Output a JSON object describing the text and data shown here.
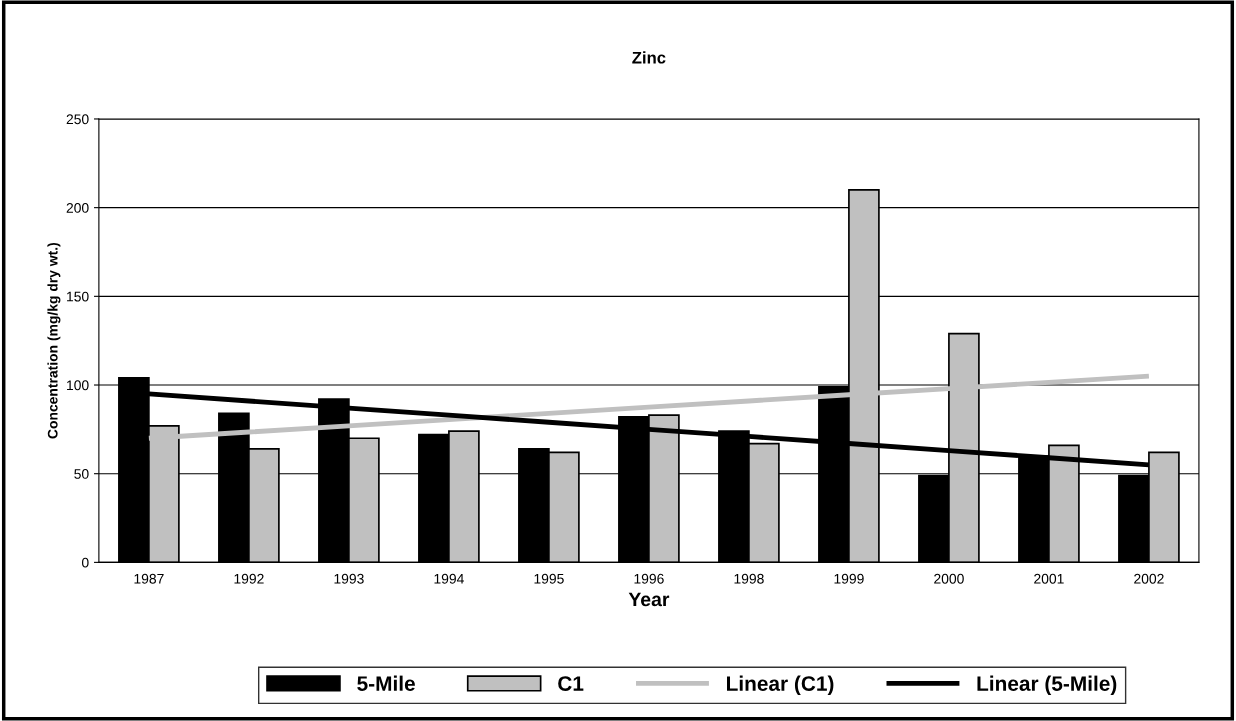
{
  "chart_data": {
    "type": "bar",
    "title": "Zinc",
    "xlabel": "Year",
    "ylabel": "Concentration (mg/kg dry wt.)",
    "categories": [
      "1987",
      "1992",
      "1993",
      "1994",
      "1995",
      "1996",
      "1998",
      "1999",
      "2000",
      "2001",
      "2002"
    ],
    "series": [
      {
        "name": "5-Mile",
        "color": "#000000",
        "values": [
          104,
          84,
          92,
          72,
          64,
          82,
          74,
          99,
          49,
          60,
          49
        ]
      },
      {
        "name": "C1",
        "color": "#c0c0c0",
        "values": [
          77,
          64,
          70,
          74,
          62,
          83,
          67,
          210,
          129,
          66,
          62
        ]
      },
      {
        "name": "Linear (C1)",
        "type": "line",
        "color": "#c0c0c0",
        "values": [
          70,
          73.5,
          77,
          80.5,
          84,
          87.5,
          91,
          94.5,
          98,
          101.5,
          105
        ]
      },
      {
        "name": "Linear (5-Mile)",
        "type": "line",
        "color": "#000000",
        "values": [
          95,
          91,
          87,
          83,
          79,
          75,
          71,
          67,
          63,
          59,
          55
        ]
      }
    ],
    "ylim": [
      0,
      250
    ],
    "yticks": [
      0,
      50,
      100,
      150,
      200,
      250
    ],
    "grid": "y",
    "legend": "bottom"
  }
}
